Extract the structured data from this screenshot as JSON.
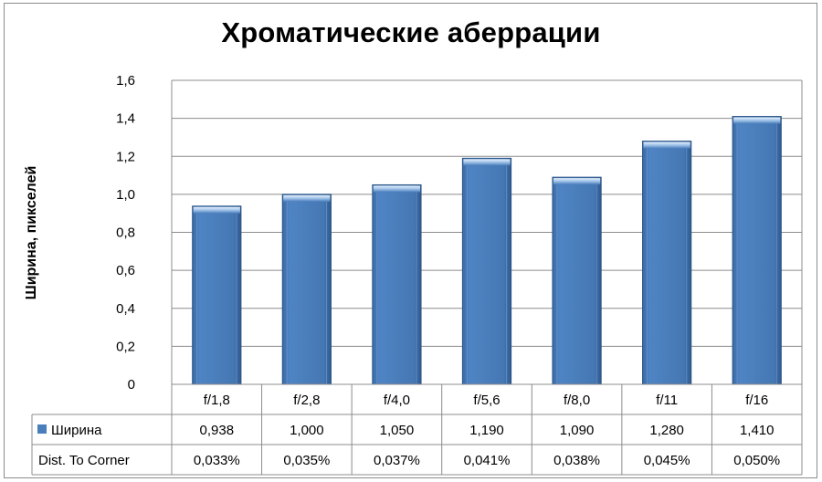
{
  "chart_data": {
    "type": "bar",
    "title": "Хроматические аберрации",
    "ylabel": "Ширина, пикселей",
    "xlabel": "",
    "ylim": [
      0,
      1.6
    ],
    "yticks": [
      "0",
      "0,2",
      "0,4",
      "0,6",
      "0,8",
      "1,0",
      "1,2",
      "1,4",
      "1,6"
    ],
    "grid": true,
    "categories": [
      "f/1,8",
      "f/2,8",
      "f/4,0",
      "f/5,6",
      "f/8,0",
      "f/11",
      "f/16"
    ],
    "series": [
      {
        "name": "Ширина",
        "values": [
          0.938,
          1.0,
          1.05,
          1.19,
          1.09,
          1.28,
          1.41
        ],
        "labels": [
          "0,938",
          "1,000",
          "1,050",
          "1,190",
          "1,090",
          "1,280",
          "1,410"
        ],
        "color": "#4a7ebb"
      }
    ],
    "table": {
      "row_labels": [
        "Ширина",
        "Dist. To Corner"
      ],
      "rows": [
        [
          "0,938",
          "1,000",
          "1,050",
          "1,190",
          "1,090",
          "1,280",
          "1,410"
        ],
        [
          "0,033%",
          "0,035%",
          "0,037%",
          "0,041%",
          "0,038%",
          "0,045%",
          "0,050%"
        ]
      ]
    }
  }
}
